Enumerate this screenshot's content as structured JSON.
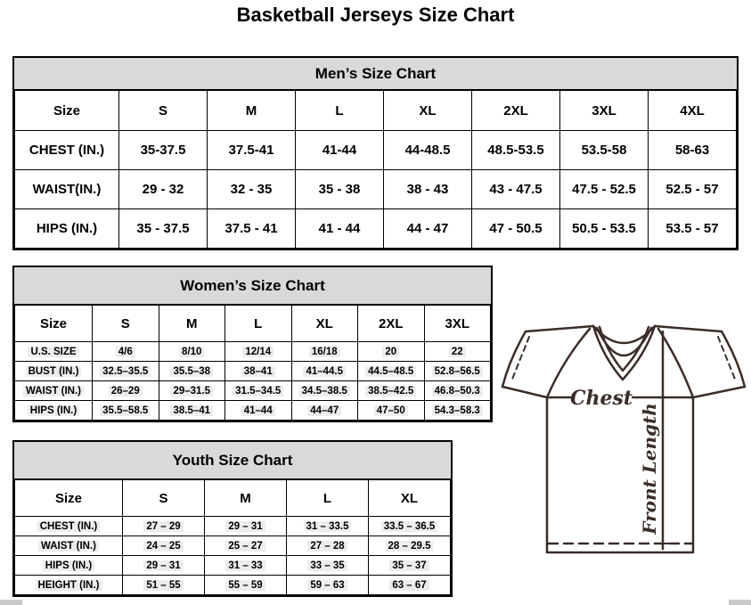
{
  "page_title": "Basketball Jerseys Size Chart",
  "mens_chart": {
    "title": "Men’s Size Chart",
    "columns": [
      "Size",
      "S",
      "M",
      "L",
      "XL",
      "2XL",
      "3XL",
      "4XL"
    ],
    "rows": [
      {
        "label": "CHEST (IN.)",
        "values": [
          "35-37.5",
          "37.5-41",
          "41-44",
          "44-48.5",
          "48.5-53.5",
          "53.5-58",
          "58-63"
        ]
      },
      {
        "label": "WAIST(IN.)",
        "values": [
          "29 - 32",
          "32 - 35",
          "35 - 38",
          "38 - 43",
          "43 - 47.5",
          "47.5 - 52.5",
          "52.5 - 57"
        ]
      },
      {
        "label": "HIPS (IN.)",
        "values": [
          "35 - 37.5",
          "37.5 - 41",
          "41 - 44",
          "44 - 47",
          "47 - 50.5",
          "50.5 - 53.5",
          "53.5 - 57"
        ]
      }
    ]
  },
  "womens_chart": {
    "title": "Women’s Size Chart",
    "columns": [
      "Size",
      "S",
      "M",
      "L",
      "XL",
      "2XL",
      "3XL"
    ],
    "rows": [
      {
        "label": "U.S. SIZE",
        "values": [
          "4/6",
          "8/10",
          "12/14",
          "16/18",
          "20",
          "22"
        ]
      },
      {
        "label": "BUST (IN.)",
        "values": [
          "32.5–35.5",
          "35.5–38",
          "38–41",
          "41–44.5",
          "44.5–48.5",
          "52.8–56.5"
        ]
      },
      {
        "label": "WAIST (IN.)",
        "values": [
          "26–29",
          "29–31.5",
          "31.5–34.5",
          "34.5–38.5",
          "38.5–42.5",
          "46.8–50.3"
        ]
      },
      {
        "label": "HIPS (IN.)",
        "values": [
          "35.5–58.5",
          "38.5–41",
          "41–44",
          "44–47",
          "47–50",
          "54.3–58.3"
        ]
      }
    ]
  },
  "youth_chart": {
    "title": "Youth Size Chart",
    "columns": [
      "Size",
      "S",
      "M",
      "L",
      "XL"
    ],
    "rows": [
      {
        "label": "CHEST (IN.)",
        "values": [
          "27 – 29",
          "29 – 31",
          "31 – 33.5",
          "33.5 – 36.5"
        ]
      },
      {
        "label": "WAIST (IN.)",
        "values": [
          "24 – 25",
          "25 – 27",
          "27 – 28",
          "28 – 29.5"
        ]
      },
      {
        "label": "HIPS (IN.)",
        "values": [
          "29 – 31",
          "31 – 33",
          "33 – 35",
          "35 – 37"
        ]
      },
      {
        "label": "HEIGHT (IN.)",
        "values": [
          "51 – 55",
          "55 – 59",
          "59 – 63",
          "63 – 67"
        ]
      }
    ]
  },
  "diagram": {
    "chest_label": "Chest",
    "front_length_label": "Front Length",
    "line_color": "#3a2d28"
  },
  "colors": {
    "table_header_bg": "#d9d9d9",
    "table_border": "#000000",
    "cell_highlight": "#ededed",
    "scrollbar": "#c9c9c9"
  }
}
